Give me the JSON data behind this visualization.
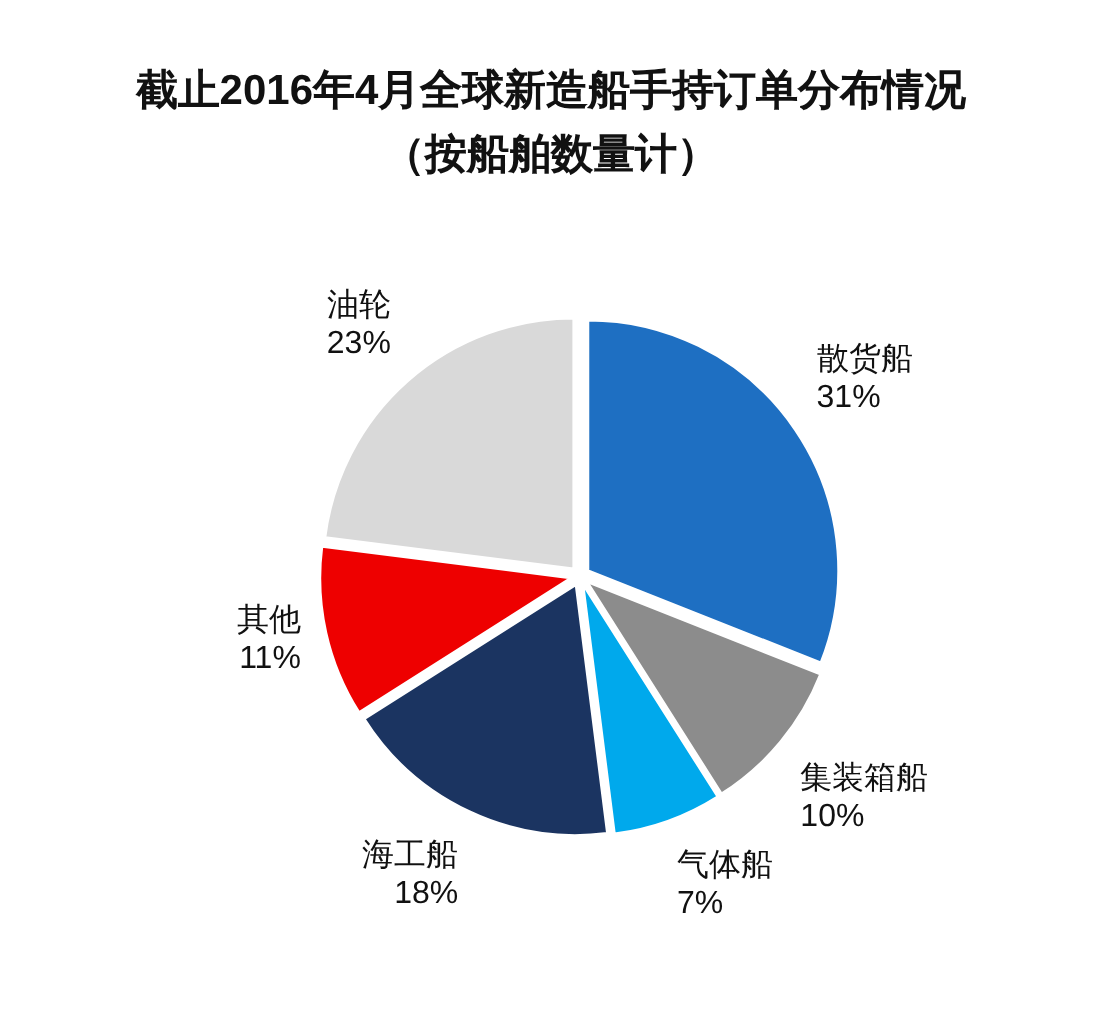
{
  "chart_data": {
    "type": "pie",
    "title": "截止2016年4月全球新造船手持订单分布情况",
    "subtitle": "（按船舶数量计）",
    "categories": [
      "散货船",
      "集装箱船",
      "气体船",
      "海工船",
      "其他",
      "油轮"
    ],
    "values": [
      31,
      10,
      7,
      18,
      11,
      23
    ],
    "colors": [
      "#1e6fc2",
      "#8c8c8c",
      "#00a9ec",
      "#1b3461",
      "#ee0000",
      "#d9d9d9"
    ],
    "value_labels": [
      "31%",
      "10%",
      "7%",
      "18%",
      "11%",
      "23%"
    ]
  }
}
